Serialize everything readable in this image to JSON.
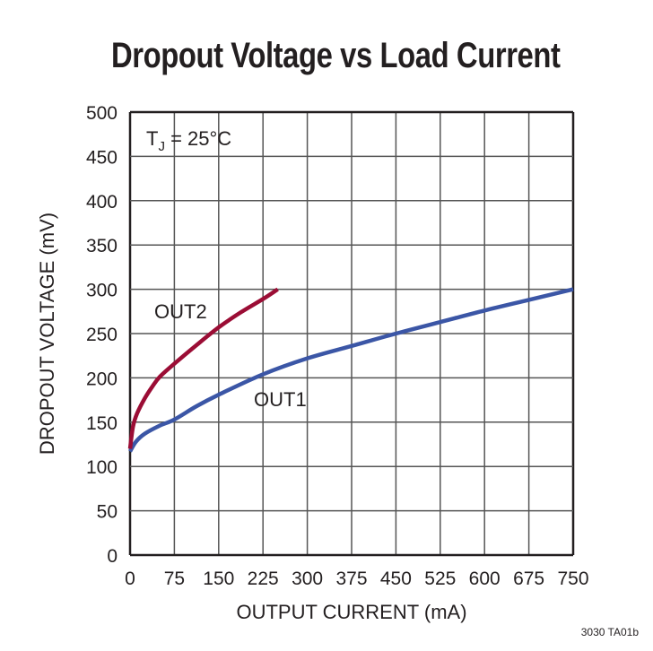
{
  "chart_data": {
    "type": "line",
    "title": "Dropout Voltage vs Load Current",
    "xlabel": "OUTPUT CURRENT (mA)",
    "ylabel": "DROPOUT VOLTAGE (mV)",
    "xlim": [
      0,
      750
    ],
    "ylim": [
      0,
      500
    ],
    "xticks": [
      0,
      75,
      150,
      225,
      300,
      375,
      450,
      525,
      600,
      675,
      750
    ],
    "yticks": [
      0,
      50,
      100,
      150,
      200,
      250,
      300,
      350,
      400,
      450,
      500
    ],
    "grid": true,
    "annotation": {
      "main": "T",
      "sub": "J",
      "rest": " = 25°C"
    },
    "series": [
      {
        "name": "OUT1",
        "color": "#3b56a6",
        "x": [
          0,
          10,
          25,
          50,
          75,
          112.5,
          150,
          225,
          300,
          375,
          450,
          525,
          600,
          675,
          750
        ],
        "y": [
          117,
          128,
          137,
          146,
          153,
          168,
          181,
          204,
          222,
          236,
          250,
          263,
          276,
          288,
          300
        ]
      },
      {
        "name": "OUT2",
        "color": "#9b0d35",
        "x": [
          0,
          5,
          12,
          25,
          37.5,
          50,
          75,
          112.5,
          150,
          187.5,
          225,
          250
        ],
        "y": [
          120,
          145,
          160,
          177,
          190,
          201,
          216,
          237,
          257,
          274,
          289,
          300
        ]
      }
    ]
  },
  "footer_code": "3030 TA01b"
}
